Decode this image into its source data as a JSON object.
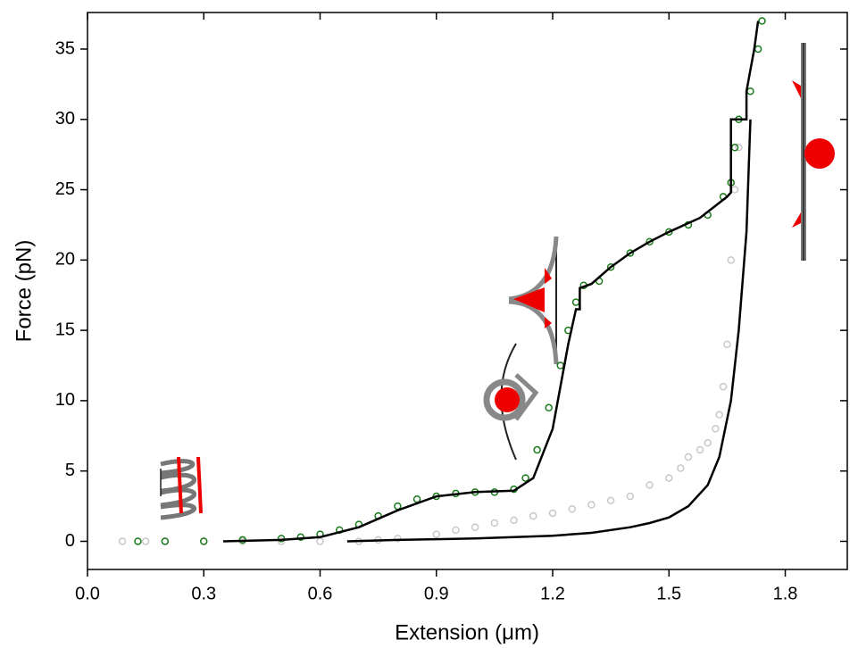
{
  "chart_data": {
    "type": "line",
    "x_label": "Extension (μm)",
    "y_label": "Force (pN)",
    "xlim": [
      0,
      1.96
    ],
    "ylim": [
      -2,
      37.6
    ],
    "xticks": [
      {
        "value": 0,
        "label": "0.0"
      },
      0.3,
      0.6,
      0.9,
      1.2,
      1.5,
      1.8
    ],
    "yticks": [
      0,
      5,
      10,
      15,
      20,
      25,
      30,
      35
    ],
    "series": [
      {
        "mode": "markers",
        "color": "#c8c8c8",
        "x": [
          0.09,
          0.15,
          0.2,
          0.3,
          0.4,
          0.5,
          0.6,
          0.7,
          0.75,
          0.8,
          0.9,
          0.95,
          1.0,
          1.05,
          1.1,
          1.15,
          1.2,
          1.25,
          1.3,
          1.35,
          1.4,
          1.45,
          1.5,
          1.53,
          1.55,
          1.58,
          1.6,
          1.62,
          1.63,
          1.64,
          1.65,
          1.66,
          1.67,
          1.68
        ],
        "values": [
          0,
          0,
          0,
          0,
          0,
          0,
          0,
          0,
          0.1,
          0.2,
          0.5,
          0.8,
          1.0,
          1.3,
          1.5,
          1.8,
          2.0,
          2.3,
          2.6,
          2.9,
          3.2,
          4.0,
          4.5,
          5.2,
          6.0,
          6.5,
          7.0,
          8.0,
          9.0,
          11,
          14,
          20,
          25,
          28
        ]
      },
      {
        "mode": "markers",
        "color": "#1a7a1a",
        "x": [
          0.13,
          0.2,
          0.3,
          0.4,
          0.5,
          0.55,
          0.6,
          0.65,
          0.7,
          0.75,
          0.8,
          0.85,
          0.9,
          0.95,
          1.0,
          1.05,
          1.1,
          1.13,
          1.16,
          1.19,
          1.22,
          1.24,
          1.26,
          1.28,
          1.32,
          1.35,
          1.4,
          1.45,
          1.5,
          1.55,
          1.6,
          1.64,
          1.66,
          1.67,
          1.68,
          1.71,
          1.73,
          1.74
        ],
        "values": [
          0,
          0,
          0,
          0.1,
          0.2,
          0.3,
          0.5,
          0.8,
          1.2,
          1.8,
          2.5,
          3.0,
          3.2,
          3.4,
          3.5,
          3.5,
          3.7,
          4.5,
          6.5,
          9.5,
          12.5,
          15,
          17,
          18.2,
          18.5,
          19.5,
          20.5,
          21.3,
          22,
          22.5,
          23.2,
          24.5,
          25.5,
          28,
          30,
          32,
          35,
          37
        ]
      },
      {
        "mode": "line",
        "color": "#000000",
        "x": [
          0.35,
          0.5,
          0.6,
          0.7,
          0.8,
          0.9,
          1.0,
          1.1,
          1.15,
          1.2,
          1.24,
          1.26,
          1.27,
          1.27,
          1.3,
          1.35,
          1.4,
          1.45,
          1.5,
          1.58,
          1.65,
          1.66,
          1.66,
          1.7,
          1.7,
          1.72,
          1.73
        ],
        "values": [
          0,
          0.1,
          0.3,
          1.0,
          2.2,
          3.2,
          3.5,
          3.6,
          4.5,
          8,
          14,
          16.5,
          16.5,
          18,
          18.3,
          19.5,
          20.5,
          21.3,
          22,
          23,
          24.5,
          24.8,
          30,
          30,
          32,
          35,
          37
        ]
      },
      {
        "mode": "line",
        "color": "#000000",
        "x": [
          0.67,
          0.8,
          1.0,
          1.2,
          1.3,
          1.4,
          1.45,
          1.5,
          1.55,
          1.6,
          1.63,
          1.66,
          1.68,
          1.7,
          1.71
        ],
        "values": [
          0,
          0.1,
          0.2,
          0.4,
          0.6,
          1.0,
          1.3,
          1.7,
          2.5,
          4,
          6,
          10,
          15,
          22,
          30
        ]
      }
    ]
  }
}
